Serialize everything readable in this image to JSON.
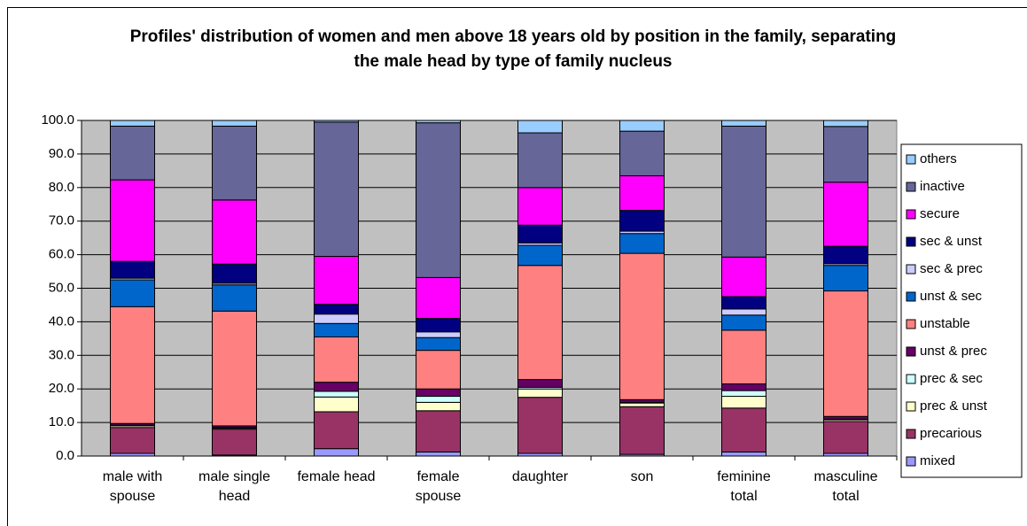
{
  "chart_data": {
    "type": "stacked_bar",
    "title": "Profiles' distribution of women and men above 18 years old by position in the family, separating the male head by type of family nucleus",
    "categories": [
      "male with spouse",
      "male single head",
      "female head",
      "female spouse",
      "daughter",
      "son",
      "feminine total",
      "masculine total"
    ],
    "series": [
      {
        "name": "mixed",
        "color": "#9999FF",
        "values": [
          0.8,
          0.3,
          2.2,
          1.2,
          0.8,
          0.5,
          1.2,
          0.8
        ]
      },
      {
        "name": "precarious",
        "color": "#993366",
        "values": [
          7.7,
          7.7,
          11.0,
          12.3,
          16.7,
          14.2,
          13.1,
          9.5
        ]
      },
      {
        "name": "prec & unst",
        "color": "#FFFFCC",
        "values": [
          0.5,
          0.3,
          4.4,
          2.5,
          2.5,
          1.1,
          3.5,
          0.5
        ]
      },
      {
        "name": "prec & sec",
        "color": "#CCFFFF",
        "values": [
          0.2,
          0.2,
          1.7,
          1.8,
          0.5,
          0.2,
          1.7,
          0.2
        ]
      },
      {
        "name": "unst & prec",
        "color": "#660066",
        "values": [
          0.5,
          0.5,
          2.7,
          2.2,
          2.3,
          0.8,
          2.0,
          0.8
        ]
      },
      {
        "name": "unstable",
        "color": "#FF8080",
        "values": [
          34.8,
          34.2,
          13.5,
          11.5,
          34.0,
          43.6,
          16.0,
          37.4
        ]
      },
      {
        "name": "unst & sec",
        "color": "#0066CC",
        "values": [
          8.0,
          7.8,
          4.0,
          3.8,
          6.0,
          5.9,
          4.5,
          7.6
        ]
      },
      {
        "name": "sec & prec",
        "color": "#CCCCFF",
        "values": [
          0.5,
          0.5,
          2.8,
          1.7,
          0.7,
          0.7,
          1.8,
          0.5
        ]
      },
      {
        "name": "sec & unst",
        "color": "#000080",
        "values": [
          5.0,
          5.7,
          2.9,
          4.0,
          5.3,
          6.2,
          3.7,
          5.2
        ]
      },
      {
        "name": "secure",
        "color": "#FF00FF",
        "values": [
          24.3,
          19.1,
          14.3,
          12.2,
          11.2,
          10.3,
          11.8,
          19.1
        ]
      },
      {
        "name": "inactive",
        "color": "#666699",
        "values": [
          16.0,
          22.0,
          40.0,
          46.1,
          16.3,
          13.3,
          39.0,
          16.6
        ]
      },
      {
        "name": "others",
        "color": "#99CCFF",
        "values": [
          1.7,
          1.7,
          0.5,
          0.7,
          3.7,
          3.2,
          1.7,
          1.8
        ]
      }
    ],
    "ylim": [
      0,
      100
    ],
    "yticks": [
      {
        "value": 0,
        "label": "0.0"
      },
      {
        "value": 10,
        "label": "10.0"
      },
      {
        "value": 20,
        "label": "20.0"
      },
      {
        "value": 30,
        "label": "30.0"
      },
      {
        "value": 40,
        "label": "40.0"
      },
      {
        "value": 50,
        "label": "50.0"
      },
      {
        "value": 60,
        "label": "60.0"
      },
      {
        "value": 70,
        "label": "70.0"
      },
      {
        "value": 80,
        "label": "80.0"
      },
      {
        "value": 90,
        "label": "90.0"
      },
      {
        "value": 100,
        "label": "100.0"
      }
    ],
    "grid": true,
    "legend": "right",
    "plot_background": "#C0C0C0"
  }
}
